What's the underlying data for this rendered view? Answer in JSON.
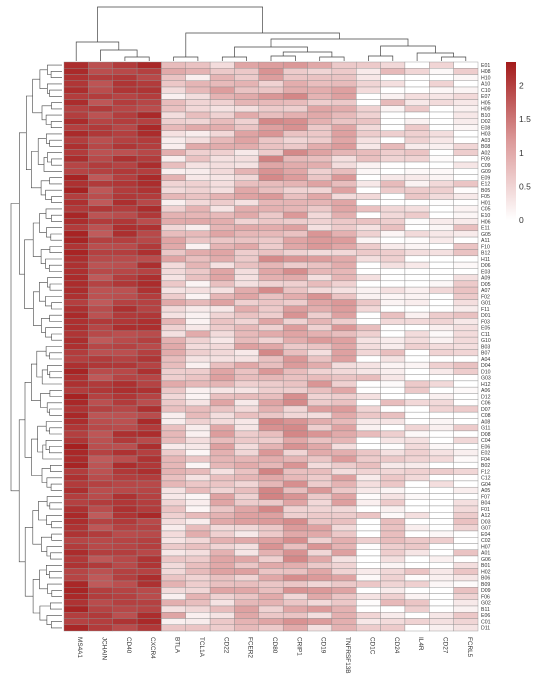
{
  "chart_data": {
    "type": "heatmap",
    "title": "",
    "xlabel": "",
    "ylabel": "",
    "columns": [
      "MS4A1",
      "JCHAIN",
      "CD40",
      "CXCR4",
      "BTLA",
      "TCL1A",
      "CD22",
      "FCER2",
      "CD80",
      "CRIP1",
      "CD19",
      "TNFRSF13B",
      "CD1C",
      "CD24",
      "IL4R",
      "CD27",
      "FCRL5"
    ],
    "rows": [
      "E01",
      "H08",
      "H10",
      "A10",
      "C10",
      "E07",
      "H05",
      "H09",
      "B10",
      "D02",
      "E08",
      "H03",
      "A03",
      "B08",
      "A02",
      "F09",
      "C09",
      "G09",
      "E09",
      "E12",
      "B05",
      "F05",
      "H01",
      "C05",
      "E10",
      "H06",
      "E11",
      "G05",
      "A11",
      "F10",
      "B12",
      "H11",
      "D06",
      "E03",
      "A09",
      "D05",
      "A07",
      "F02",
      "G01",
      "F11",
      "D01",
      "F03",
      "E05",
      "C11",
      "G10",
      "B03",
      "B07",
      "A04",
      "D04",
      "D10",
      "G03",
      "H12",
      "A06",
      "D12",
      "C06",
      "D07",
      "C08",
      "A08",
      "G11",
      "D08",
      "C04",
      "E06",
      "E02",
      "F04",
      "B02",
      "F12",
      "C12",
      "G04",
      "A05",
      "F07",
      "B04",
      "F01",
      "A12",
      "D03",
      "G07",
      "E04",
      "C02",
      "H07",
      "A01",
      "G06",
      "B01",
      "H02",
      "B06",
      "B09",
      "D09",
      "F06",
      "G02",
      "B11",
      "E06",
      "C01",
      "D11"
    ],
    "col_means": [
      2.12,
      1.92,
      2.0,
      2.05,
      0.62,
      0.55,
      0.7,
      0.7,
      0.95,
      0.9,
      0.8,
      0.78,
      0.35,
      0.38,
      0.25,
      0.15,
      0.3
    ],
    "values_note": "",
    "colorbar": {
      "ticks": [
        0,
        0.5,
        1,
        1.5,
        2
      ],
      "tick_labels": [
        "0",
        "0.5",
        "1",
        "1.5",
        "2"
      ],
      "min": 0,
      "max": 2.35
    },
    "colors": {
      "low": "#ffffff",
      "mid": "#dc9a9a",
      "high": "#a31a1a",
      "border": "#8c8c8c",
      "tree": "#444444"
    },
    "row_dendrogram": true,
    "col_dendrogram": true,
    "legend_position": "right"
  }
}
